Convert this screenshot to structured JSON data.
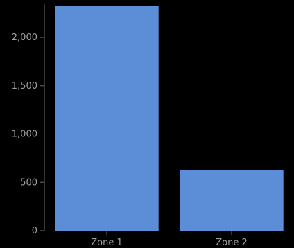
{
  "chart_data": {
    "type": "bar",
    "categories": [
      "Zone 1",
      "Zone 2"
    ],
    "values": [
      2330,
      630
    ],
    "ylim": [
      0,
      2330
    ],
    "yticks": [
      0,
      500,
      1000,
      1500,
      2000
    ],
    "ytick_labels": [
      "0",
      "500",
      "1,000",
      "1,500",
      "2,000"
    ],
    "title": "",
    "xlabel": "",
    "ylabel": "",
    "grid": false,
    "legend": "none"
  },
  "colors": {
    "background": "#000000",
    "bar": "#5b8ed6",
    "axis": "#6b6b6b",
    "tick_text": "#a0a0a0"
  }
}
